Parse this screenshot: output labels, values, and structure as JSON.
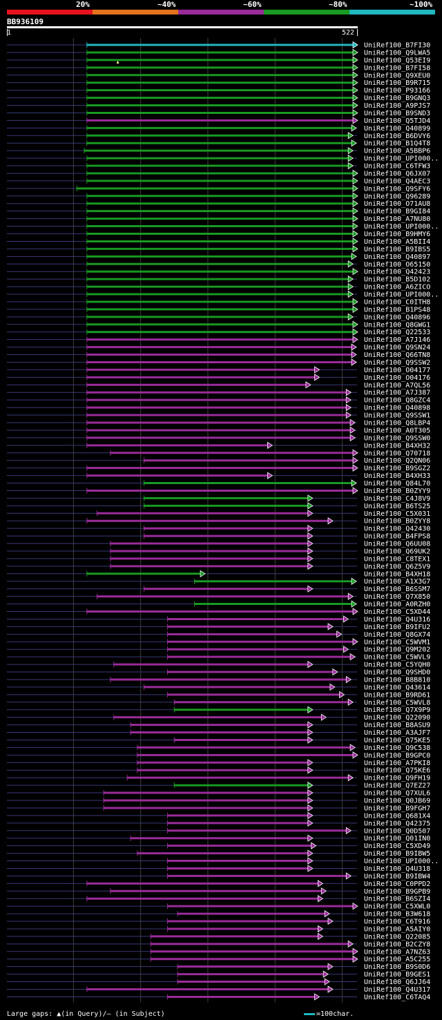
{
  "legend": [
    {
      "label": "20%",
      "color": "#e8131c"
    },
    {
      "label": "~40%",
      "color": "#e4731d"
    },
    {
      "label": "~60%",
      "color": "#9a2c9a"
    },
    {
      "label": "~80%",
      "color": "#189a23"
    },
    {
      "label": "~100%",
      "color": "#1fb8c0"
    }
  ],
  "query": {
    "name": "BB936109",
    "start": "1",
    "end": "522",
    "length": 522
  },
  "colors": {
    "cyan": "#1fb8c0",
    "green": "#189a23",
    "magenta": "#9a2c9a",
    "thin": "#3a3a7a",
    "grid": "#404040"
  },
  "footer": {
    "gaps": "Large gaps: ▲(in Query)/– (in Subject)",
    "scale": "=100char."
  },
  "hits": [
    {
      "name": "UniRef100_B7FI30",
      "s": 120,
      "e": 522,
      "c": "cyan",
      "m": []
    },
    {
      "name": "UniRef100_Q9LWA5",
      "s": 120,
      "e": 522,
      "c": "green",
      "m": []
    },
    {
      "name": "UniRef100_Q53EI9",
      "s": 120,
      "e": 522,
      "c": "green",
      "m": [
        166
      ]
    },
    {
      "name": "UniRef100_B7FI58",
      "s": 120,
      "e": 522,
      "c": "green",
      "m": []
    },
    {
      "name": "UniRef100_Q9XEU0",
      "s": 120,
      "e": 522,
      "c": "green",
      "m": []
    },
    {
      "name": "UniRef100_B9R715",
      "s": 120,
      "e": 522,
      "c": "green",
      "m": []
    },
    {
      "name": "UniRef100_P93166",
      "s": 120,
      "e": 522,
      "c": "green",
      "m": []
    },
    {
      "name": "UniRef100_B9GNQ3",
      "s": 120,
      "e": 522,
      "c": "green",
      "m": []
    },
    {
      "name": "UniRef100_A9PJS7",
      "s": 120,
      "e": 522,
      "c": "green",
      "m": []
    },
    {
      "name": "UniRef100_B9SND3",
      "s": 120,
      "e": 522,
      "c": "green",
      "m": []
    },
    {
      "name": "UniRef100_Q5TJD4",
      "s": 120,
      "e": 522,
      "c": "magenta",
      "m": []
    },
    {
      "name": "UniRef100_Q40899",
      "s": 120,
      "e": 520,
      "c": "green",
      "m": []
    },
    {
      "name": "UniRef100_B6DVY6",
      "s": 120,
      "e": 515,
      "c": "green",
      "m": []
    },
    {
      "name": "UniRef100_B1Q4T8",
      "s": 120,
      "e": 520,
      "c": "green",
      "m": []
    },
    {
      "name": "UniRef100_A5BBP6",
      "s": 116,
      "e": 515,
      "c": "green",
      "m": []
    },
    {
      "name": "UniRef100_UPI000..",
      "s": 120,
      "e": 515,
      "c": "green",
      "m": []
    },
    {
      "name": "UniRef100_C6TFW3",
      "s": 120,
      "e": 515,
      "c": "green",
      "m": []
    },
    {
      "name": "UniRef100_Q6JX07",
      "s": 120,
      "e": 522,
      "c": "green",
      "m": []
    },
    {
      "name": "UniRef100_Q4AEC3",
      "s": 120,
      "e": 522,
      "c": "green",
      "m": []
    },
    {
      "name": "UniRef100_Q9SFY6",
      "s": 105,
      "e": 522,
      "c": "green",
      "m": []
    },
    {
      "name": "UniRef100_Q96289",
      "s": 120,
      "e": 522,
      "c": "green",
      "m": []
    },
    {
      "name": "UniRef100_O71AU8",
      "s": 120,
      "e": 522,
      "c": "green",
      "m": []
    },
    {
      "name": "UniRef100_B9GI84",
      "s": 120,
      "e": 522,
      "c": "green",
      "m": []
    },
    {
      "name": "UniRef100_A7NU80",
      "s": 120,
      "e": 522,
      "c": "green",
      "m": []
    },
    {
      "name": "UniRef100_UPI000..",
      "s": 120,
      "e": 522,
      "c": "green",
      "m": []
    },
    {
      "name": "UniRef100_B9HMY6",
      "s": 120,
      "e": 522,
      "c": "green",
      "m": []
    },
    {
      "name": "UniRef100_A5BII4",
      "s": 120,
      "e": 522,
      "c": "green",
      "m": []
    },
    {
      "name": "UniRef100_B9IBS5",
      "s": 120,
      "e": 522,
      "c": "green",
      "m": []
    },
    {
      "name": "UniRef100_Q40897",
      "s": 120,
      "e": 520,
      "c": "green",
      "m": []
    },
    {
      "name": "UniRef100_O65150",
      "s": 120,
      "e": 515,
      "c": "green",
      "m": []
    },
    {
      "name": "UniRef100_Q42423",
      "s": 120,
      "e": 522,
      "c": "green",
      "m": []
    },
    {
      "name": "UniRef100_B5D102",
      "s": 120,
      "e": 515,
      "c": "green",
      "m": []
    },
    {
      "name": "UniRef100_A6ZICO",
      "s": 120,
      "e": 515,
      "c": "green",
      "m": []
    },
    {
      "name": "UniRef100_UPI000..",
      "s": 120,
      "e": 515,
      "c": "green",
      "m": []
    },
    {
      "name": "UniRef100_C0ITH8",
      "s": 120,
      "e": 522,
      "c": "green",
      "m": []
    },
    {
      "name": "UniRef100_B1PS48",
      "s": 120,
      "e": 522,
      "c": "green",
      "m": []
    },
    {
      "name": "UniRef100_Q40896",
      "s": 120,
      "e": 515,
      "c": "green",
      "m": []
    },
    {
      "name": "UniRef100_Q8GWG1",
      "s": 120,
      "e": 522,
      "c": "green",
      "m": []
    },
    {
      "name": "UniRef100_Q22533",
      "s": 120,
      "e": 522,
      "c": "green",
      "m": []
    },
    {
      "name": "UniRef100_A7J146",
      "s": 120,
      "e": 522,
      "c": "magenta",
      "m": []
    },
    {
      "name": "UniRef100_Q9SN24",
      "s": 120,
      "e": 520,
      "c": "magenta",
      "m": []
    },
    {
      "name": "UniRef100_Q66TN8",
      "s": 120,
      "e": 520,
      "c": "magenta",
      "m": []
    },
    {
      "name": "UniRef100_Q9SSW2",
      "s": 120,
      "e": 520,
      "c": "magenta",
      "m": []
    },
    {
      "name": "UniRef100_O04177",
      "s": 120,
      "e": 465,
      "c": "magenta",
      "m": []
    },
    {
      "name": "UniRef100_O04176",
      "s": 120,
      "e": 465,
      "c": "magenta",
      "m": []
    },
    {
      "name": "UniRef100_A7QL56",
      "s": 120,
      "e": 452,
      "c": "magenta",
      "m": []
    },
    {
      "name": "UniRef100_A7J387",
      "s": 120,
      "e": 512,
      "c": "magenta",
      "m": []
    },
    {
      "name": "UniRef100_Q8GZC4",
      "s": 120,
      "e": 512,
      "c": "magenta",
      "m": []
    },
    {
      "name": "UniRef100_Q40898",
      "s": 120,
      "e": 512,
      "c": "magenta",
      "m": []
    },
    {
      "name": "UniRef100_Q9SSW1",
      "s": 120,
      "e": 512,
      "c": "magenta",
      "m": []
    },
    {
      "name": "UniRef100_Q8LBP4",
      "s": 120,
      "e": 518,
      "c": "magenta",
      "m": []
    },
    {
      "name": "UniRef100_A0T305",
      "s": 120,
      "e": 518,
      "c": "magenta",
      "m": []
    },
    {
      "name": "UniRef100_Q9SSW0",
      "s": 120,
      "e": 518,
      "c": "magenta",
      "m": []
    },
    {
      "name": "UniRef100_B4XH32",
      "s": 120,
      "e": 395,
      "c": "magenta",
      "m": []
    },
    {
      "name": "UniRef100_Q70718",
      "s": 155,
      "e": 522,
      "c": "magenta",
      "m": []
    },
    {
      "name": "UniRef100_Q2QN06",
      "s": 205,
      "e": 522,
      "c": "magenta",
      "m": []
    },
    {
      "name": "UniRef100_B9SGZ2",
      "s": 120,
      "e": 522,
      "c": "magenta",
      "m": []
    },
    {
      "name": "UniRef100_B4XH33",
      "s": 120,
      "e": 395,
      "c": "magenta",
      "m": []
    },
    {
      "name": "UniRef100_Q84L70",
      "s": 205,
      "e": 520,
      "c": "green",
      "m": []
    },
    {
      "name": "UniRef100_B0ZYY9",
      "s": 120,
      "e": 522,
      "c": "magenta",
      "m": []
    },
    {
      "name": "UniRef100_C4J8V9",
      "s": 205,
      "e": 455,
      "c": "green",
      "m": []
    },
    {
      "name": "UniRef100_B6TS25",
      "s": 205,
      "e": 455,
      "c": "green",
      "m": []
    },
    {
      "name": "UniRef100_C5X031",
      "s": 135,
      "e": 455,
      "c": "magenta",
      "m": []
    },
    {
      "name": "UniRef100_B0ZYY8",
      "s": 120,
      "e": 485,
      "c": "magenta",
      "m": []
    },
    {
      "name": "UniRef100_Q42430",
      "s": 205,
      "e": 455,
      "c": "magenta",
      "m": []
    },
    {
      "name": "UniRef100_B4FPS8",
      "s": 205,
      "e": 455,
      "c": "magenta",
      "m": []
    },
    {
      "name": "UniRef100_Q6UU08",
      "s": 155,
      "e": 455,
      "c": "magenta",
      "m": []
    },
    {
      "name": "UniRef100_Q69UK2",
      "s": 155,
      "e": 455,
      "c": "magenta",
      "m": []
    },
    {
      "name": "UniRef100_C8TEX1",
      "s": 155,
      "e": 455,
      "c": "magenta",
      "m": []
    },
    {
      "name": "UniRef100_Q6Z5V9",
      "s": 155,
      "e": 455,
      "c": "magenta",
      "m": []
    },
    {
      "name": "UniRef100_B4XH18",
      "s": 120,
      "e": 295,
      "c": "green",
      "m": []
    },
    {
      "name": "UniRef100_A1X3G7",
      "s": 280,
      "e": 520,
      "c": "green",
      "m": []
    },
    {
      "name": "UniRef100_B6SSM7",
      "s": 205,
      "e": 455,
      "c": "magenta",
      "m": []
    },
    {
      "name": "UniRef100_Q7X850",
      "s": 135,
      "e": 515,
      "c": "magenta",
      "m": []
    },
    {
      "name": "UniRef100_A0RZH0",
      "s": 280,
      "e": 520,
      "c": "green",
      "m": []
    },
    {
      "name": "UniRef100_C5XD44",
      "s": 120,
      "e": 522,
      "c": "magenta",
      "m": []
    },
    {
      "name": "UniRef100_Q4U316",
      "s": 240,
      "e": 508,
      "c": "magenta",
      "m": []
    },
    {
      "name": "UniRef100_B9IFU2",
      "s": 240,
      "e": 485,
      "c": "magenta",
      "m": []
    },
    {
      "name": "UniRef100_Q8GX74",
      "s": 240,
      "e": 498,
      "c": "magenta",
      "m": []
    },
    {
      "name": "UniRef100_C5WVM1",
      "s": 240,
      "e": 522,
      "c": "magenta",
      "m": []
    },
    {
      "name": "UniRef100_Q9M202",
      "s": 240,
      "e": 508,
      "c": "magenta",
      "m": []
    },
    {
      "name": "UniRef100_C5WVL9",
      "s": 240,
      "e": 518,
      "c": "magenta",
      "m": []
    },
    {
      "name": "UniRef100_C5YQH0",
      "s": 160,
      "e": 455,
      "c": "magenta",
      "m": []
    },
    {
      "name": "UniRef100_Q9SHD0",
      "s": 240,
      "e": 492,
      "c": "magenta",
      "m": []
    },
    {
      "name": "UniRef100_B8B810",
      "s": 155,
      "e": 512,
      "c": "magenta",
      "m": []
    },
    {
      "name": "UniRef100_Q43614",
      "s": 205,
      "e": 488,
      "c": "magenta",
      "m": []
    },
    {
      "name": "UniRef100_B9RD61",
      "s": 240,
      "e": 502,
      "c": "magenta",
      "m": []
    },
    {
      "name": "UniRef100_C5WVL8",
      "s": 250,
      "e": 515,
      "c": "magenta",
      "m": []
    },
    {
      "name": "UniRef100_Q7X9P9",
      "s": 250,
      "e": 455,
      "c": "green",
      "m": []
    },
    {
      "name": "UniRef100_Q22090",
      "s": 160,
      "e": 475,
      "c": "magenta",
      "m": []
    },
    {
      "name": "UniRef100_B8ASU9",
      "s": 185,
      "e": 455,
      "c": "magenta",
      "m": []
    },
    {
      "name": "UniRef100_A3AJF7",
      "s": 185,
      "e": 455,
      "c": "magenta",
      "m": []
    },
    {
      "name": "UniRef100_Q75KE5",
      "s": 250,
      "e": 455,
      "c": "magenta",
      "m": []
    },
    {
      "name": "UniRef100_Q9C538",
      "s": 195,
      "e": 518,
      "c": "magenta",
      "m": []
    },
    {
      "name": "UniRef100_B9GPC0",
      "s": 195,
      "e": 522,
      "c": "magenta",
      "m": []
    },
    {
      "name": "UniRef100_A7PKI8",
      "s": 195,
      "e": 455,
      "c": "magenta",
      "m": []
    },
    {
      "name": "UniRef100_Q75KE6",
      "s": 195,
      "e": 455,
      "c": "magenta",
      "m": []
    },
    {
      "name": "UniRef100_Q9FH19",
      "s": 180,
      "e": 515,
      "c": "magenta",
      "m": []
    },
    {
      "name": "UniRef100_Q7EZ27",
      "s": 250,
      "e": 455,
      "c": "green",
      "m": []
    },
    {
      "name": "UniRef100_Q7XUL6",
      "s": 145,
      "e": 455,
      "c": "magenta",
      "m": []
    },
    {
      "name": "UniRef100_Q0JB69",
      "s": 145,
      "e": 455,
      "c": "magenta",
      "m": []
    },
    {
      "name": "UniRef100_B9FGH7",
      "s": 145,
      "e": 455,
      "c": "magenta",
      "m": []
    },
    {
      "name": "UniRef100_Q681X4",
      "s": 240,
      "e": 455,
      "c": "magenta",
      "m": []
    },
    {
      "name": "UniRef100_Q42375",
      "s": 240,
      "e": 455,
      "c": "magenta",
      "m": []
    },
    {
      "name": "UniRef100_Q0D507",
      "s": 240,
      "e": 512,
      "c": "magenta",
      "m": []
    },
    {
      "name": "UniRef100_Q01IN0",
      "s": 185,
      "e": 455,
      "c": "magenta",
      "m": []
    },
    {
      "name": "UniRef100_C5XD49",
      "s": 240,
      "e": 460,
      "c": "magenta",
      "m": []
    },
    {
      "name": "UniRef100_B9IBW5",
      "s": 195,
      "e": 455,
      "c": "magenta",
      "m": []
    },
    {
      "name": "UniRef100_UPI000..",
      "s": 240,
      "e": 455,
      "c": "magenta",
      "m": []
    },
    {
      "name": "UniRef100_Q4U318",
      "s": 240,
      "e": 455,
      "c": "magenta",
      "m": []
    },
    {
      "name": "UniRef100_B9IBW4",
      "s": 240,
      "e": 512,
      "c": "magenta",
      "m": []
    },
    {
      "name": "UniRef100_C0PPD2",
      "s": 120,
      "e": 470,
      "c": "magenta",
      "m": []
    },
    {
      "name": "UniRef100_B9GPB9",
      "s": 155,
      "e": 475,
      "c": "magenta",
      "m": []
    },
    {
      "name": "UniRef100_B6SZI4",
      "s": 120,
      "e": 470,
      "c": "magenta",
      "m": []
    },
    {
      "name": "UniRef100_C5XWL0",
      "s": 240,
      "e": 522,
      "c": "magenta",
      "m": []
    },
    {
      "name": "UniRef100_B3W618",
      "s": 255,
      "e": 480,
      "c": "magenta",
      "m": []
    },
    {
      "name": "UniRef100_C6T916",
      "s": 240,
      "e": 485,
      "c": "magenta",
      "m": []
    },
    {
      "name": "UniRef100_A5AIY0",
      "s": 240,
      "e": 470,
      "c": "magenta",
      "m": []
    },
    {
      "name": "UniRef100_Q22085",
      "s": 215,
      "e": 470,
      "c": "magenta",
      "m": []
    },
    {
      "name": "UniRef100_B2CZY8",
      "s": 215,
      "e": 515,
      "c": "magenta",
      "m": []
    },
    {
      "name": "UniRef100_A7NZ63",
      "s": 215,
      "e": 522,
      "c": "magenta",
      "m": []
    },
    {
      "name": "UniRef100_A5C255",
      "s": 215,
      "e": 522,
      "c": "magenta",
      "m": []
    },
    {
      "name": "UniRef100_B9S0D6",
      "s": 255,
      "e": 485,
      "c": "magenta",
      "m": []
    },
    {
      "name": "UniRef100_B9GES1",
      "s": 255,
      "e": 478,
      "c": "magenta",
      "m": []
    },
    {
      "name": "UniRef100_Q6JJ64",
      "s": 255,
      "e": 480,
      "c": "magenta",
      "m": []
    },
    {
      "name": "UniRef100_Q4U317",
      "s": 120,
      "e": 485,
      "c": "magenta",
      "m": []
    },
    {
      "name": "UniRef100_C6TAQ4",
      "s": 240,
      "e": 465,
      "c": "magenta",
      "m": []
    }
  ]
}
